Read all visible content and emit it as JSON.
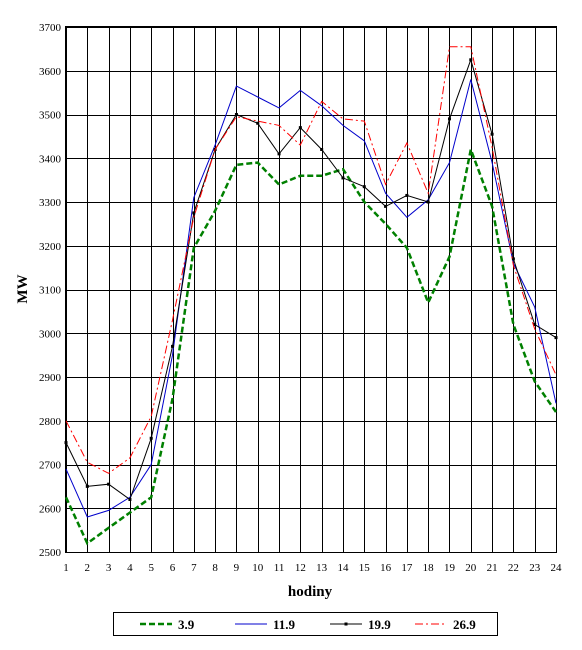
{
  "chart_data": {
    "type": "line",
    "xlabel": "hodiny",
    "ylabel": "MW",
    "x": [
      1,
      2,
      3,
      4,
      5,
      6,
      7,
      8,
      9,
      10,
      11,
      12,
      13,
      14,
      15,
      16,
      17,
      18,
      19,
      20,
      21,
      22,
      23,
      24
    ],
    "ylim": [
      2500,
      3700
    ],
    "yticks": [
      2500,
      2600,
      2700,
      2800,
      2900,
      3000,
      3100,
      3200,
      3300,
      3400,
      3500,
      3600,
      3700
    ],
    "grid": true,
    "legend_position": "bottom",
    "series": [
      {
        "name": "3.9",
        "color": "#008000",
        "style": "dashed-thick",
        "values": [
          2625,
          2520,
          2555,
          2590,
          2625,
          2850,
          3195,
          3280,
          3385,
          3390,
          3340,
          3360,
          3360,
          3375,
          3300,
          3250,
          3195,
          3070,
          3175,
          3420,
          3290,
          3020,
          2890,
          2820
        ]
      },
      {
        "name": "11.9",
        "color": "#0000cc",
        "style": "solid",
        "values": [
          2690,
          2580,
          2595,
          2625,
          2700,
          2950,
          3310,
          3430,
          3565,
          3540,
          3515,
          3555,
          3520,
          3475,
          3440,
          3320,
          3265,
          3305,
          3390,
          3580,
          3390,
          3160,
          3060,
          2840
        ]
      },
      {
        "name": "19.9",
        "color": "#000000",
        "style": "solid-markers",
        "values": [
          2750,
          2650,
          2655,
          2620,
          2760,
          2970,
          3275,
          3420,
          3500,
          3480,
          3410,
          3470,
          3420,
          3355,
          3335,
          3290,
          3315,
          3300,
          3490,
          3625,
          3455,
          3170,
          3020,
          2990
        ]
      },
      {
        "name": "26.9",
        "color": "#ff0000",
        "style": "dashdot",
        "values": [
          2800,
          2705,
          2680,
          2715,
          2810,
          3030,
          3265,
          3420,
          3495,
          3485,
          3475,
          3430,
          3530,
          3490,
          3485,
          3340,
          3435,
          3320,
          3655,
          3655,
          3425,
          3155,
          3010,
          2905
        ]
      }
    ]
  }
}
